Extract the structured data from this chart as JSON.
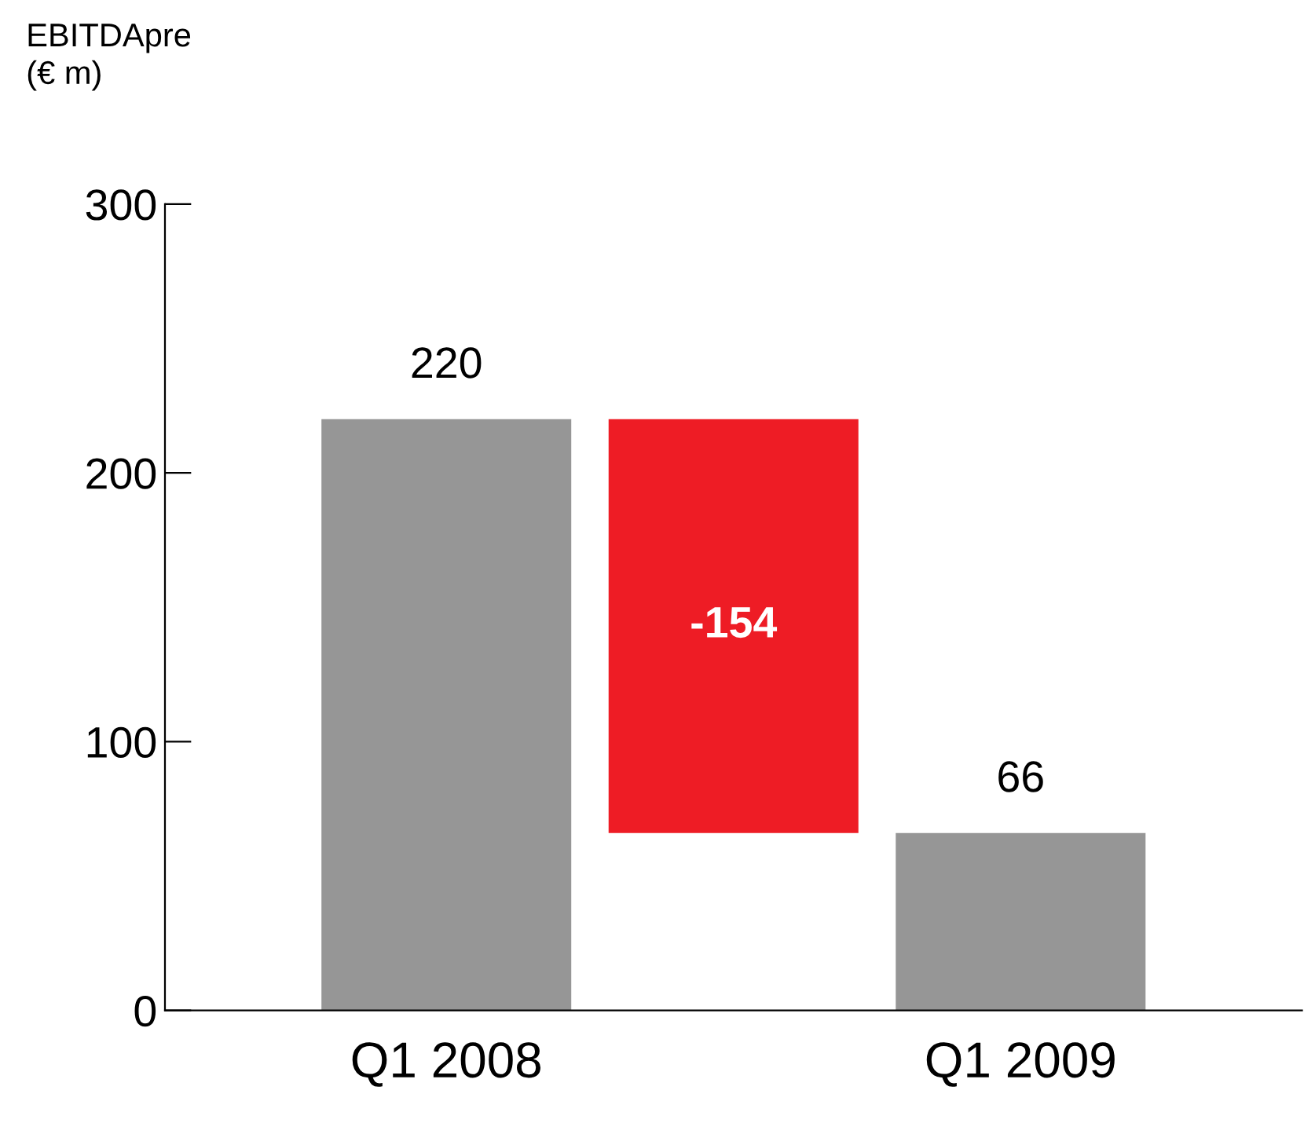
{
  "chart_data": {
    "type": "bar",
    "ylabel": "EBITDApre\n(€ m)",
    "categories": [
      "Q1 2008",
      null,
      "Q1 2009"
    ],
    "values": [
      220,
      -154,
      66
    ],
    "base": [
      0,
      220,
      0
    ],
    "colors": [
      "#969696",
      "#ee1c25",
      "#969696"
    ],
    "value_labels": [
      "220",
      "-154",
      "66"
    ],
    "ylim": [
      0,
      300
    ],
    "yticks": [
      0,
      100,
      200,
      300
    ],
    "grid": false,
    "legend": false
  }
}
